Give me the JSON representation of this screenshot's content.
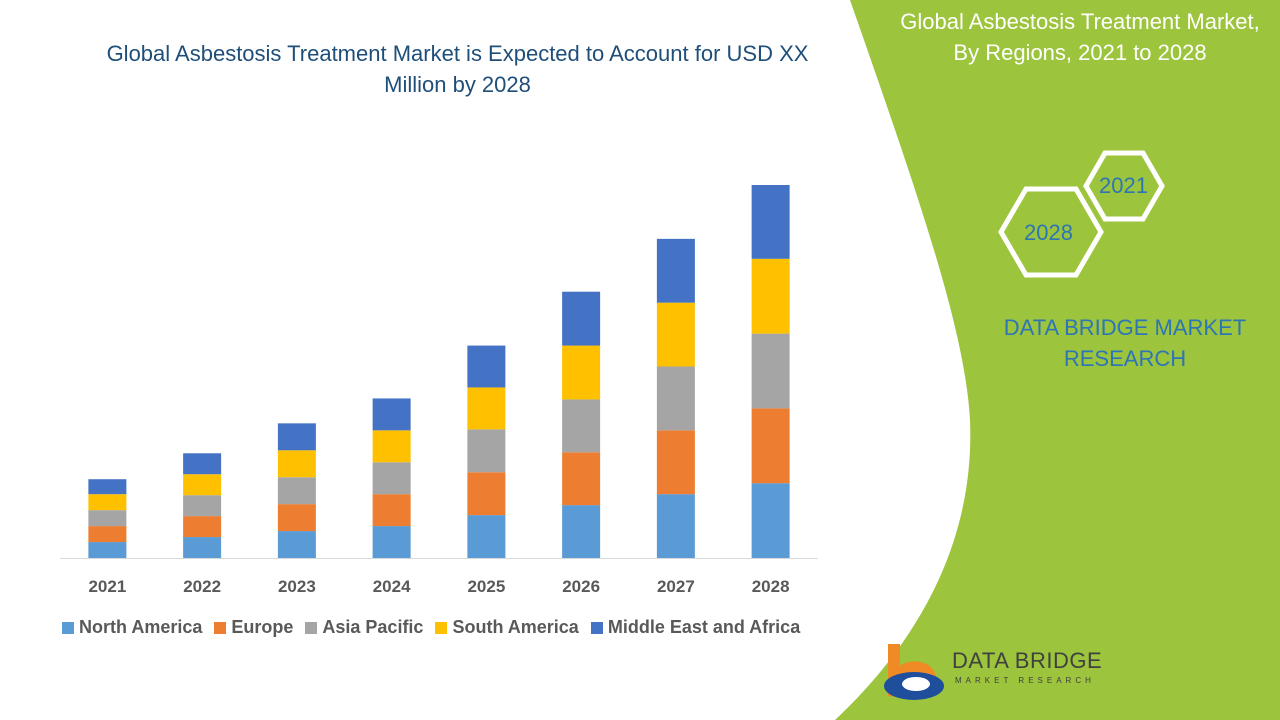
{
  "header": {
    "title": "Global Asbestosis Treatment Market is Expected to Account for USD XX Million by 2028"
  },
  "side_panel": {
    "title": "Global Asbestosis Treatment Market, By Regions, 2021 to 2028",
    "hex_start": "2021",
    "hex_end": "2028",
    "brand": "DATA BRIDGE MARKET RESEARCH",
    "panel_color": "#9cc43c"
  },
  "logo": {
    "name": "DATA BRIDGE",
    "tagline": "MARKET RESEARCH"
  },
  "chart_data": {
    "type": "bar",
    "stacked": true,
    "title": "Global Asbestosis Treatment Market is Expected to Account for USD XX Million by 2028",
    "xlabel": "",
    "ylabel": "",
    "y_axis_shown": false,
    "grid": false,
    "legend_position": "bottom",
    "categories": [
      "2021",
      "2022",
      "2023",
      "2024",
      "2025",
      "2026",
      "2027",
      "2028"
    ],
    "series": [
      {
        "name": "North America",
        "color": "#5b9bd5",
        "values": [
          16,
          21,
          27,
          32,
          43,
          53,
          64,
          75
        ]
      },
      {
        "name": "Europe",
        "color": "#ed7d31",
        "values": [
          16,
          21,
          27,
          32,
          43,
          53,
          64,
          75
        ]
      },
      {
        "name": "Asia Pacific",
        "color": "#a5a5a5",
        "values": [
          16,
          21,
          27,
          32,
          43,
          53,
          64,
          75
        ]
      },
      {
        "name": "South America",
        "color": "#ffc000",
        "values": [
          16,
          21,
          27,
          32,
          42,
          54,
          64,
          75
        ]
      },
      {
        "name": "Middle East and Africa",
        "color": "#4472c4",
        "values": [
          15,
          21,
          27,
          32,
          42,
          54,
          64,
          74
        ]
      }
    ]
  }
}
